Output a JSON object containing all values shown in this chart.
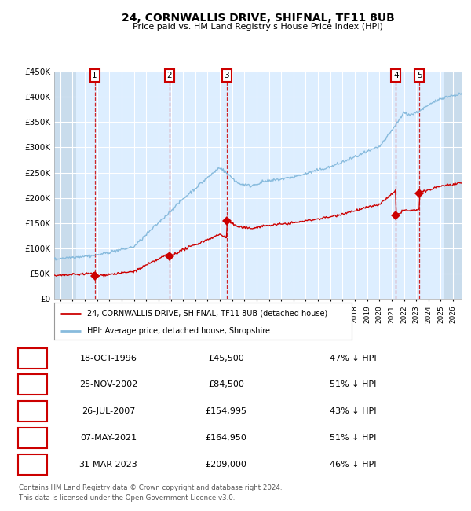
{
  "title1": "24, CORNWALLIS DRIVE, SHIFNAL, TF11 8UB",
  "title2": "Price paid vs. HM Land Registry's House Price Index (HPI)",
  "ylim": [
    0,
    450000
  ],
  "xlim_start": 1993.5,
  "xlim_end": 2026.7,
  "hatch_left_end": 1995.3,
  "hatch_right_start": 2025.3,
  "yticks": [
    0,
    50000,
    100000,
    150000,
    200000,
    250000,
    300000,
    350000,
    400000,
    450000
  ],
  "ytick_labels": [
    "£0",
    "£50K",
    "£100K",
    "£150K",
    "£200K",
    "£250K",
    "£300K",
    "£350K",
    "£400K",
    "£450K"
  ],
  "bg_color": "#ffffff",
  "plot_bg_color": "#ddeeff",
  "grid_color": "#ffffff",
  "hpi_color": "#88bbdd",
  "price_color": "#cc0000",
  "vline_color": "#cc0000",
  "transactions": [
    {
      "num": 1,
      "date_str": "18-OCT-1996",
      "year": 1996.8,
      "price": 45500,
      "label": "1"
    },
    {
      "num": 2,
      "date_str": "25-NOV-2002",
      "year": 2002.9,
      "price": 84500,
      "label": "2"
    },
    {
      "num": 3,
      "date_str": "26-JUL-2007",
      "year": 2007.57,
      "price": 154995,
      "label": "3"
    },
    {
      "num": 4,
      "date_str": "07-MAY-2021",
      "year": 2021.35,
      "price": 164950,
      "label": "4"
    },
    {
      "num": 5,
      "date_str": "31-MAR-2023",
      "year": 2023.25,
      "price": 209000,
      "label": "5"
    }
  ],
  "legend_label_red": "24, CORNWALLIS DRIVE, SHIFNAL, TF11 8UB (detached house)",
  "legend_label_blue": "HPI: Average price, detached house, Shropshire",
  "footer1": "Contains HM Land Registry data © Crown copyright and database right 2024.",
  "footer2": "This data is licensed under the Open Government Licence v3.0.",
  "table_rows": [
    [
      "1",
      "18-OCT-1996",
      "£45,500",
      "47% ↓ HPI"
    ],
    [
      "2",
      "25-NOV-2002",
      "£84,500",
      "51% ↓ HPI"
    ],
    [
      "3",
      "26-JUL-2007",
      "£154,995",
      "43% ↓ HPI"
    ],
    [
      "4",
      "07-MAY-2021",
      "£164,950",
      "51% ↓ HPI"
    ],
    [
      "5",
      "31-MAR-2023",
      "£209,000",
      "46% ↓ HPI"
    ]
  ]
}
